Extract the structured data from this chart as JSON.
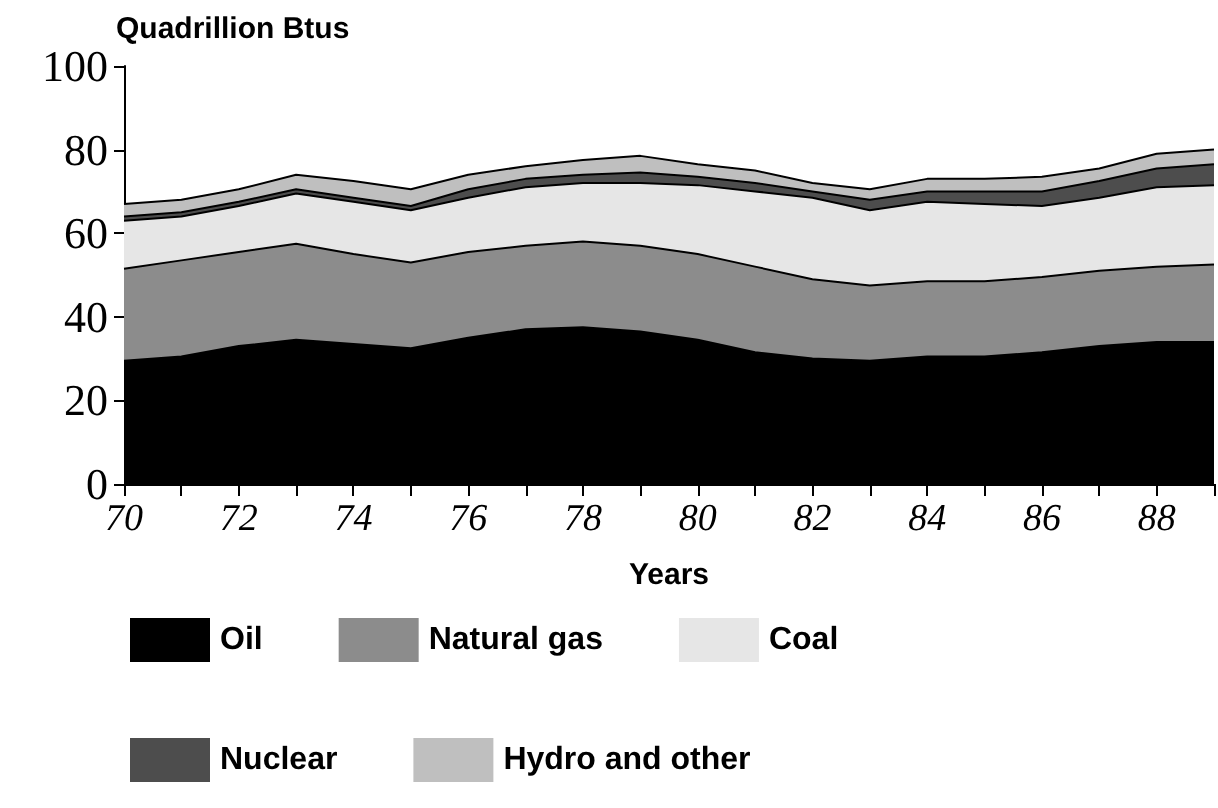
{
  "chart_data": {
    "type": "area",
    "stacked": true,
    "ylabel": "Quadrillion Btus",
    "xlabel": "Years",
    "x": [
      70,
      71,
      72,
      73,
      74,
      75,
      76,
      77,
      78,
      79,
      80,
      81,
      82,
      83,
      84,
      85,
      86,
      87,
      88,
      89
    ],
    "series": [
      {
        "name": "Oil",
        "color": "#000000",
        "values": [
          29.5,
          30.5,
          33,
          34.5,
          33.5,
          32.5,
          35,
          37,
          37.5,
          36.5,
          34.5,
          31.5,
          30,
          29.5,
          30.5,
          30.5,
          31.5,
          33,
          34,
          34
        ]
      },
      {
        "name": "Natural gas",
        "color": "#8c8c8c",
        "values": [
          22,
          23,
          22.5,
          23,
          21.5,
          20.5,
          20.5,
          20,
          20.5,
          20.5,
          20.5,
          20.5,
          19,
          18,
          18,
          18,
          18,
          18,
          18,
          18.5
        ]
      },
      {
        "name": "Coal",
        "color": "#e6e6e6",
        "values": [
          11.5,
          10.5,
          11,
          12,
          12.5,
          12.5,
          13,
          14,
          14,
          15,
          16.5,
          18,
          19.5,
          18,
          19,
          18.5,
          17,
          17.5,
          19,
          19
        ]
      },
      {
        "name": "Nuclear",
        "color": "#4d4d4d",
        "values": [
          1,
          1,
          1,
          1,
          1,
          1,
          2,
          2,
          2,
          2.5,
          2,
          2,
          1.5,
          2.5,
          2.5,
          3,
          3.5,
          4,
          4.5,
          5
        ]
      },
      {
        "name": "Hydro and other",
        "color": "#bfbfbf",
        "values": [
          3,
          3,
          3,
          3.5,
          4,
          4,
          3.5,
          3,
          3.5,
          4,
          3,
          3,
          2,
          2.5,
          3,
          3,
          3.5,
          3,
          3.5,
          3.5
        ]
      }
    ],
    "xlim": [
      70,
      89
    ],
    "xticks": [
      70,
      {
        "value": 71,
        "label": null
      },
      72,
      {
        "value": 73,
        "label": null
      },
      74,
      {
        "value": 75,
        "label": null
      },
      76,
      {
        "value": 77,
        "label": null
      },
      78,
      {
        "value": 79,
        "label": null
      },
      80,
      {
        "value": 81,
        "label": null
      },
      82,
      {
        "value": 83,
        "label": null
      },
      84,
      {
        "value": 85,
        "label": null
      },
      86,
      {
        "value": 87,
        "label": null
      },
      88,
      {
        "value": 89,
        "label": null
      }
    ],
    "ylim": [
      0,
      100
    ],
    "yticks": [
      0,
      20,
      40,
      60,
      80,
      100
    ],
    "legend": "bottom",
    "grid": false
  }
}
